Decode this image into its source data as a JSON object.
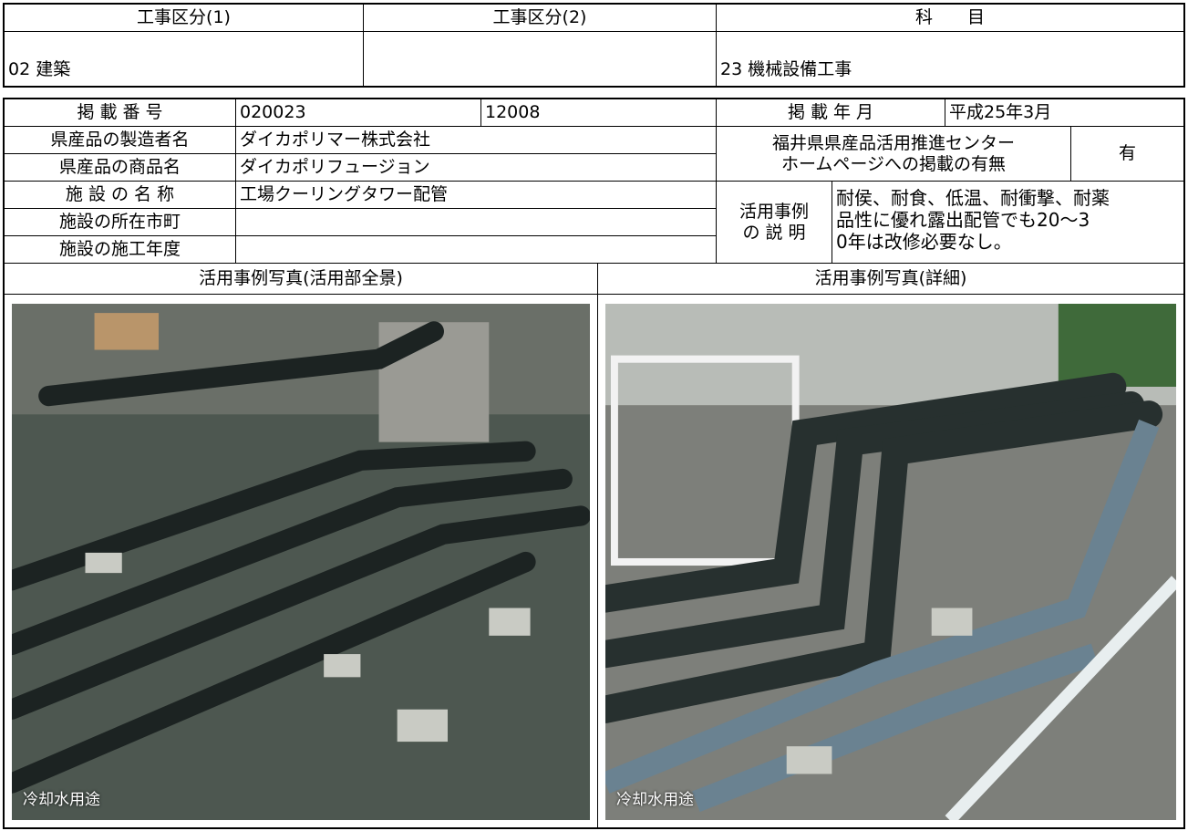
{
  "header_table": {
    "headers": [
      "工事区分(1)",
      "工事区分(2)",
      "科　　目"
    ],
    "category_1": "02 建築",
    "subject": "23 機械設備工事"
  },
  "main_table": {
    "listing_number_label": "掲 載 番 号",
    "listing_number": "020023",
    "listing_code": "12008",
    "listing_date_label": "掲 載 年 月",
    "listing_date": "平成25年3月",
    "maker_label": "県産品の製造者名",
    "maker": "ダイカポリマー株式会社",
    "website_label": [
      "福井県県産品活用推進センター",
      "ホームページへの掲載の有無"
    ],
    "website_value": "有",
    "product_label": "県産品の商品名",
    "product": "ダイカポリフュージョン",
    "facility_label": "施 設 の 名 称",
    "facility": "工場クーリングタワー配管",
    "location_label": "施設の所在市町",
    "year_label": "施設の施工年度",
    "description_label": [
      "活用事例",
      "の 説 明"
    ],
    "description": [
      "耐侯、耐食、低温、耐衝撃、耐薬",
      "品性に優れ露出配管でも20～3",
      "0年は改修必要なし。"
    ]
  },
  "photos": [
    {
      "title": "活用事例写真(活用部全景)",
      "caption": "冷却水用途"
    },
    {
      "title": "活用事例写真(詳細)",
      "caption": "冷却水用途"
    }
  ]
}
